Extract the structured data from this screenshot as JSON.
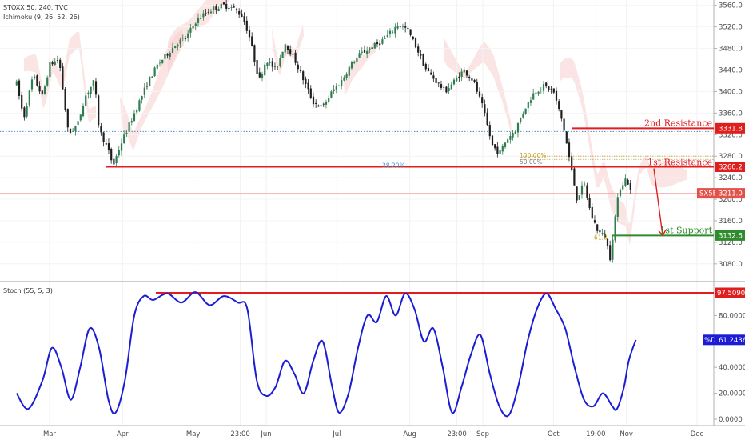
{
  "header": {
    "symbol_line": "STOXX 50, 240, TVC",
    "indicator_line": "Ichimoku (9, 26, 52, 26)",
    "stoch_line": "Stoch (55, 5, 3)"
  },
  "annotations": {
    "resistance2": "2nd Resistance",
    "resistance1": "1st Resistance",
    "support1": "1st Support",
    "fib_100": "100.00%",
    "fib_50": "50.00%",
    "fib_38": "38.20%",
    "fib_61": "61.8"
  },
  "tags": {
    "res2": "3331.8",
    "res1": "3260.2",
    "symbol": "SX5E",
    "price": "3211.0",
    "sup1": "3132.6",
    "stoch_level": "97.5090",
    "stoch_d_label": "%D",
    "stoch_d": "61.2436"
  },
  "colors": {
    "candle_up": "#2e7d4f",
    "candle_down": "#1f1f1f",
    "resistance": "#e01e1e",
    "support": "#2e8b2e",
    "stoch_line": "#1c1cd4",
    "cloud": "#f6cdcd",
    "dotted_line": "#4a8fd0"
  },
  "chart_data": [
    {
      "type": "candlestick",
      "title": "STOXX 50, 240, TVC",
      "x_tick_labels": [
        "Mar",
        "Apr",
        "May",
        "23:00",
        "Jun",
        "Jul",
        "Aug",
        "23:00",
        "Sep",
        "Oct",
        "19:00",
        "Nov",
        "Dec"
      ],
      "y_tick_labels": [
        "3560.0",
        "3520.0",
        "3480.0",
        "3440.0",
        "3400.0",
        "3360.0",
        "3320.0",
        "3280.0",
        "3240.0",
        "3200.0",
        "3160.0",
        "3120.0",
        "3080.0"
      ],
      "ylim": [
        3050,
        3570
      ],
      "levels": [
        {
          "label": "2nd Resistance",
          "value": 3331.8
        },
        {
          "label": "1st Resistance",
          "value": 3260.2
        },
        {
          "label": "1st Support",
          "value": 3132.6
        }
      ],
      "last_price": 3211.0,
      "close_path": [
        [
          "Feb-15",
          3415
        ],
        [
          "Feb-18",
          3350
        ],
        [
          "Feb-22",
          3430
        ],
        [
          "Feb-26",
          3390
        ],
        [
          "Mar-01",
          3450
        ],
        [
          "Mar-05",
          3460
        ],
        [
          "Mar-09",
          3320
        ],
        [
          "Mar-13",
          3340
        ],
        [
          "Mar-16",
          3390
        ],
        [
          "Mar-20",
          3420
        ],
        [
          "Mar-22",
          3330
        ],
        [
          "Mar-26",
          3290
        ],
        [
          "Mar-28",
          3262
        ],
        [
          "Mar-31",
          3300
        ],
        [
          "Apr-04",
          3340
        ],
        [
          "Apr-08",
          3380
        ],
        [
          "Apr-12",
          3420
        ],
        [
          "Apr-16",
          3450
        ],
        [
          "Apr-20",
          3470
        ],
        [
          "Apr-24",
          3490
        ],
        [
          "Apr-28",
          3500
        ],
        [
          "May-02",
          3530
        ],
        [
          "May-06",
          3545
        ],
        [
          "May-10",
          3555
        ],
        [
          "May-14",
          3560
        ],
        [
          "May-18",
          3555
        ],
        [
          "May-22",
          3540
        ],
        [
          "May-25",
          3500
        ],
        [
          "May-29",
          3420
        ],
        [
          "Jun-01",
          3460
        ],
        [
          "Jun-05",
          3440
        ],
        [
          "Jun-09",
          3490
        ],
        [
          "Jun-13",
          3460
        ],
        [
          "Jun-17",
          3420
        ],
        [
          "Jun-21",
          3380
        ],
        [
          "Jun-25",
          3370
        ],
        [
          "Jun-29",
          3400
        ],
        [
          "Jul-03",
          3420
        ],
        [
          "Jul-07",
          3450
        ],
        [
          "Jul-11",
          3470
        ],
        [
          "Jul-15",
          3480
        ],
        [
          "Jul-19",
          3490
        ],
        [
          "Jul-23",
          3505
        ],
        [
          "Jul-27",
          3525
        ],
        [
          "Jul-31",
          3515
        ],
        [
          "Aug-04",
          3480
        ],
        [
          "Aug-08",
          3440
        ],
        [
          "Aug-12",
          3420
        ],
        [
          "Aug-16",
          3400
        ],
        [
          "Aug-20",
          3420
        ],
        [
          "Aug-24",
          3440
        ],
        [
          "Aug-28",
          3420
        ],
        [
          "Sep-01",
          3370
        ],
        [
          "Sep-05",
          3300
        ],
        [
          "Sep-08",
          3285
        ],
        [
          "Sep-11",
          3310
        ],
        [
          "Sep-15",
          3330
        ],
        [
          "Sep-19",
          3370
        ],
        [
          "Sep-23",
          3400
        ],
        [
          "Sep-27",
          3410
        ],
        [
          "Oct-01",
          3400
        ],
        [
          "Oct-05",
          3340
        ],
        [
          "Oct-08",
          3270
        ],
        [
          "Oct-11",
          3200
        ],
        [
          "Oct-14",
          3230
        ],
        [
          "Oct-17",
          3170
        ],
        [
          "Oct-20",
          3140
        ],
        [
          "Oct-23",
          3130
        ],
        [
          "Oct-25",
          3090
        ],
        [
          "Oct-27",
          3160
        ],
        [
          "Oct-29",
          3220
        ],
        [
          "Nov-01",
          3240
        ],
        [
          "Nov-03",
          3211
        ]
      ]
    },
    {
      "type": "line",
      "title": "Stoch (55, 5, 3)",
      "y_tick_labels": [
        "97.5090",
        "80.0000",
        "61.2436",
        "40.0000",
        "20.0000",
        "0.0000"
      ],
      "ylim": [
        0,
        100
      ],
      "levels": [
        {
          "value": 97.509
        }
      ],
      "last_value": 61.2436,
      "series": [
        {
          "name": "%D",
          "points": [
            [
              "Feb-15",
              20
            ],
            [
              "Feb-20",
              8
            ],
            [
              "Feb-26",
              30
            ],
            [
              "Mar-02",
              55
            ],
            [
              "Mar-06",
              40
            ],
            [
              "Mar-10",
              15
            ],
            [
              "Mar-14",
              40
            ],
            [
              "Mar-18",
              70
            ],
            [
              "Mar-22",
              55
            ],
            [
              "Mar-26",
              15
            ],
            [
              "Mar-29",
              5
            ],
            [
              "Apr-02",
              30
            ],
            [
              "Apr-06",
              80
            ],
            [
              "Apr-10",
              95
            ],
            [
              "Apr-14",
              92
            ],
            [
              "Apr-20",
              97
            ],
            [
              "Apr-26",
              90
            ],
            [
              "May-02",
              98
            ],
            [
              "May-08",
              88
            ],
            [
              "May-14",
              95
            ],
            [
              "May-20",
              90
            ],
            [
              "May-24",
              85
            ],
            [
              "May-28",
              30
            ],
            [
              "Jun-01",
              18
            ],
            [
              "Jun-05",
              25
            ],
            [
              "Jun-09",
              45
            ],
            [
              "Jun-13",
              35
            ],
            [
              "Jun-17",
              20
            ],
            [
              "Jun-21",
              45
            ],
            [
              "Jun-25",
              60
            ],
            [
              "Jun-29",
              25
            ],
            [
              "Jul-02",
              5
            ],
            [
              "Jul-06",
              20
            ],
            [
              "Jul-10",
              55
            ],
            [
              "Jul-14",
              80
            ],
            [
              "Jul-18",
              75
            ],
            [
              "Jul-22",
              95
            ],
            [
              "Jul-26",
              80
            ],
            [
              "Jul-30",
              97
            ],
            [
              "Aug-03",
              85
            ],
            [
              "Aug-07",
              60
            ],
            [
              "Aug-11",
              70
            ],
            [
              "Aug-15",
              40
            ],
            [
              "Aug-19",
              5
            ],
            [
              "Aug-23",
              25
            ],
            [
              "Aug-27",
              50
            ],
            [
              "Aug-31",
              65
            ],
            [
              "Sep-04",
              35
            ],
            [
              "Sep-08",
              10
            ],
            [
              "Sep-12",
              3
            ],
            [
              "Sep-16",
              25
            ],
            [
              "Sep-20",
              60
            ],
            [
              "Sep-24",
              85
            ],
            [
              "Sep-28",
              97
            ],
            [
              "Oct-02",
              85
            ],
            [
              "Oct-06",
              70
            ],
            [
              "Oct-10",
              40
            ],
            [
              "Oct-14",
              15
            ],
            [
              "Oct-18",
              10
            ],
            [
              "Oct-22",
              20
            ],
            [
              "Oct-26",
              10
            ],
            [
              "Oct-28",
              8
            ],
            [
              "Oct-31",
              25
            ],
            [
              "Nov-02",
              45
            ],
            [
              "Nov-05",
              61.24
            ]
          ]
        }
      ]
    }
  ]
}
